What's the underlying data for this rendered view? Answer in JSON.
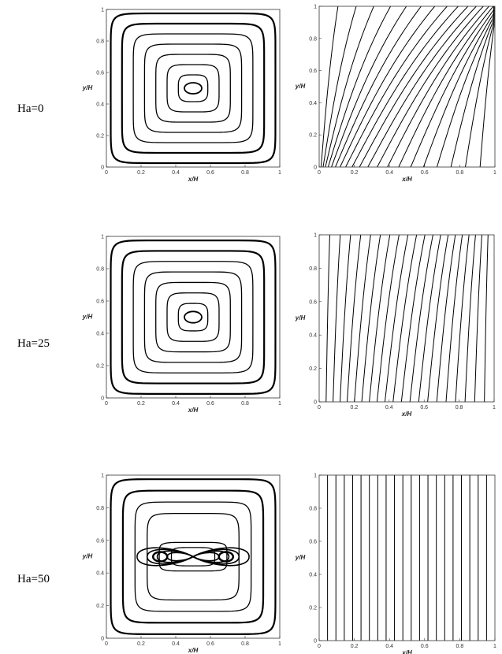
{
  "panels_title": "",
  "rows": [
    {
      "label": "Ha=0",
      "streamlines": {
        "nested_loops": 7,
        "core": "single"
      },
      "isotherms": {
        "distortion": 0.55
      }
    },
    {
      "label": "Ha=25",
      "streamlines": {
        "nested_loops": 7,
        "core": "single"
      },
      "isotherms": {
        "distortion": 0.12
      }
    },
    {
      "label": "Ha=50",
      "streamlines": {
        "nested_loops": 6,
        "core": "double"
      },
      "isotherms": {
        "distortion": 0.0
      }
    }
  ],
  "axes": {
    "xlabel": "x/H",
    "ylabel": "y/H",
    "xticks": [
      "0",
      "0.2",
      "0.4",
      "0.6",
      "0.8",
      "1"
    ],
    "yticks": [
      "0",
      "0.2",
      "0.4",
      "0.6",
      "0.8",
      "1"
    ]
  },
  "isotherm_count": 20,
  "colors": {
    "line": "#000000",
    "frame": "#333333"
  }
}
